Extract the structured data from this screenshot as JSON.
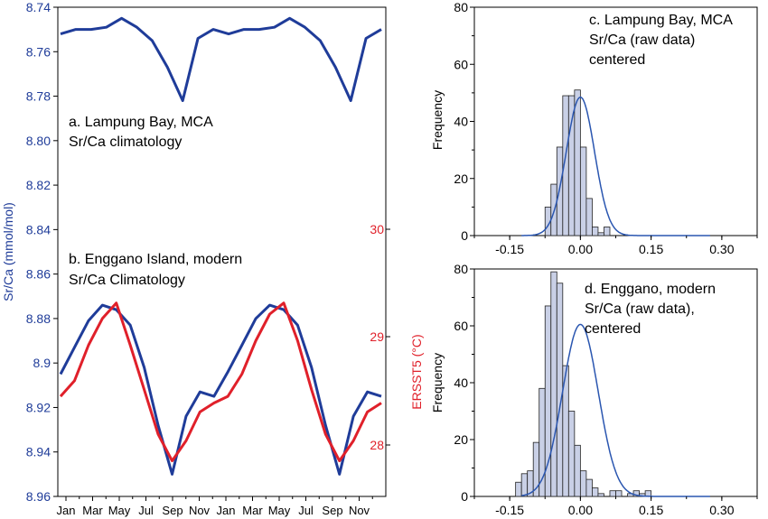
{
  "colors": {
    "sr_ca": "#1f3c99",
    "sst": "#e0202a",
    "hist_fill": "#c9d0e6",
    "hist_stroke": "#222222",
    "fit": "#2a56b0",
    "axis": "#000000"
  },
  "chart_data": [
    {
      "type": "line",
      "y_axis_left": {
        "label": "Sr/Ca (mmol/mol)",
        "range": [
          8.74,
          8.96
        ],
        "inverted": true,
        "ticks": [
          "8.74",
          "8.76",
          "8.78",
          "8.80",
          "8.82",
          "8.84",
          "8.86",
          "8.88",
          "8.9",
          "8.92",
          "8.94",
          "8.96"
        ]
      },
      "y_axis_right": {
        "label": "ERSST5 (°C)",
        "ticks": [
          "30",
          "29",
          "28"
        ]
      },
      "x_ticks": [
        "Jan",
        "Mar",
        "May",
        "Jul",
        "Sep",
        "Nov",
        "Jan",
        "Mar",
        "May",
        "Jul",
        "Sep",
        "Nov"
      ],
      "annotations": [
        {
          "line1": "a. Lampung Bay, MCA",
          "line2": "Sr/Ca climatology"
        },
        {
          "line1": "b. Enggano Island, modern",
          "line2": "Sr/Ca Climatology"
        }
      ],
      "series": [
        {
          "values": [
            8.752,
            8.75,
            8.75,
            8.749,
            8.745,
            8.749,
            8.755,
            8.767,
            8.782,
            8.754,
            8.75,
            8.752,
            8.75,
            8.75,
            8.749,
            8.745,
            8.749,
            8.755,
            8.767,
            8.782,
            8.754,
            8.75
          ]
        },
        {
          "values": [
            8.905,
            8.893,
            8.881,
            8.874,
            8.876,
            8.883,
            8.902,
            8.928,
            8.95,
            8.924,
            8.913,
            8.915,
            8.904,
            8.892,
            8.88,
            8.874,
            8.876,
            8.883,
            8.902,
            8.928,
            8.95,
            8.924,
            8.913,
            8.915
          ]
        },
        {
          "values": [
            8.915,
            8.908,
            8.892,
            8.88,
            8.873,
            8.892,
            8.912,
            8.932,
            8.944,
            8.935,
            8.922,
            8.918,
            8.915,
            8.905,
            8.89,
            8.878,
            8.873,
            8.89,
            8.912,
            8.932,
            8.944,
            8.935,
            8.922,
            8.918
          ]
        }
      ]
    },
    {
      "type": "bar",
      "annotation": [
        "c. Lampung Bay, MCA",
        "Sr/Ca (raw data)",
        "centered"
      ],
      "ylabel": "Frequency",
      "ylim": [
        0,
        80
      ],
      "xlim": [
        -0.225,
        0.375
      ],
      "y_ticks": [
        "0",
        "20",
        "40",
        "60",
        "80"
      ],
      "x_ticks": [
        "-0.15",
        "0.00",
        "0.15",
        "0.30"
      ],
      "bin_start": -0.075,
      "bin_width": 0.0125,
      "counts": [
        10,
        18,
        31,
        49,
        49,
        51,
        31,
        13,
        3,
        1,
        3
      ],
      "fit": {
        "mean": 0.0,
        "sd": 0.03,
        "peak": 48.5
      }
    },
    {
      "type": "bar",
      "annotation": [
        "d. Enggano, modern",
        "Sr/Ca (raw data),",
        "centered"
      ],
      "ylabel": "Frequency",
      "ylim": [
        0,
        80
      ],
      "xlim": [
        -0.225,
        0.375
      ],
      "y_ticks": [
        "0",
        "20",
        "40",
        "60",
        "80"
      ],
      "x_ticks": [
        "-0.15",
        "0.00",
        "0.15",
        "0.30"
      ],
      "bin_start": -0.1375,
      "bin_width": 0.0125,
      "counts": [
        5,
        8,
        9,
        19,
        38,
        67,
        79,
        75,
        46,
        30,
        18,
        9,
        6,
        3,
        1,
        0,
        2,
        2,
        0,
        1,
        2,
        1,
        2
      ],
      "fit": {
        "mean": 0.0,
        "sd": 0.038,
        "peak": 60.5
      }
    }
  ]
}
